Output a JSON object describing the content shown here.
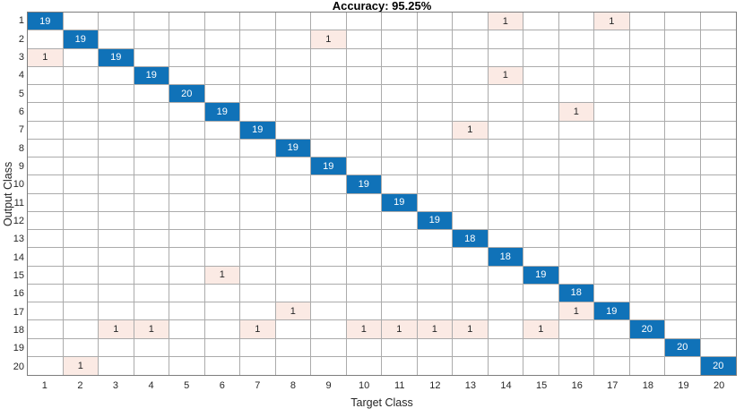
{
  "figure": {
    "title": "Accuracy: 95.25%",
    "x_axis_label": "Target Class",
    "y_axis_label": "Output Class"
  },
  "colors": {
    "diagonal_cell": "#1072B8",
    "off_diagonal_cell": "#FBEAE4",
    "diagonal_text": "#FFFFFF",
    "off_diagonal_text": "#262626",
    "grid_line": "#ABABAB",
    "outer_border": "#7D7D7D",
    "tick_text": "#262626"
  },
  "chart_data": {
    "type": "heatmap",
    "title": "Accuracy: 95.25%",
    "xlabel": "Target Class",
    "ylabel": "Output Class",
    "accuracy_percent": 95.25,
    "x_tick_labels": [
      "1",
      "2",
      "3",
      "4",
      "5",
      "6",
      "7",
      "8",
      "9",
      "10",
      "11",
      "12",
      "13",
      "14",
      "15",
      "16",
      "17",
      "18",
      "19",
      "20"
    ],
    "y_tick_labels": [
      "1",
      "2",
      "3",
      "4",
      "5",
      "6",
      "7",
      "8",
      "9",
      "10",
      "11",
      "12",
      "13",
      "14",
      "15",
      "16",
      "17",
      "18",
      "19",
      "20"
    ],
    "rows_are": "output_class",
    "cols_are": "target_class",
    "zero_cells_blank": true,
    "matrix": [
      [
        19,
        0,
        0,
        0,
        0,
        0,
        0,
        0,
        0,
        0,
        0,
        0,
        0,
        1,
        0,
        0,
        1,
        0,
        0,
        0
      ],
      [
        0,
        19,
        0,
        0,
        0,
        0,
        0,
        0,
        1,
        0,
        0,
        0,
        0,
        0,
        0,
        0,
        0,
        0,
        0,
        0
      ],
      [
        1,
        0,
        19,
        0,
        0,
        0,
        0,
        0,
        0,
        0,
        0,
        0,
        0,
        0,
        0,
        0,
        0,
        0,
        0,
        0
      ],
      [
        0,
        0,
        0,
        19,
        0,
        0,
        0,
        0,
        0,
        0,
        0,
        0,
        0,
        1,
        0,
        0,
        0,
        0,
        0,
        0
      ],
      [
        0,
        0,
        0,
        0,
        20,
        0,
        0,
        0,
        0,
        0,
        0,
        0,
        0,
        0,
        0,
        0,
        0,
        0,
        0,
        0
      ],
      [
        0,
        0,
        0,
        0,
        0,
        19,
        0,
        0,
        0,
        0,
        0,
        0,
        0,
        0,
        0,
        1,
        0,
        0,
        0,
        0
      ],
      [
        0,
        0,
        0,
        0,
        0,
        0,
        19,
        0,
        0,
        0,
        0,
        0,
        1,
        0,
        0,
        0,
        0,
        0,
        0,
        0
      ],
      [
        0,
        0,
        0,
        0,
        0,
        0,
        0,
        19,
        0,
        0,
        0,
        0,
        0,
        0,
        0,
        0,
        0,
        0,
        0,
        0
      ],
      [
        0,
        0,
        0,
        0,
        0,
        0,
        0,
        0,
        19,
        0,
        0,
        0,
        0,
        0,
        0,
        0,
        0,
        0,
        0,
        0
      ],
      [
        0,
        0,
        0,
        0,
        0,
        0,
        0,
        0,
        0,
        19,
        0,
        0,
        0,
        0,
        0,
        0,
        0,
        0,
        0,
        0
      ],
      [
        0,
        0,
        0,
        0,
        0,
        0,
        0,
        0,
        0,
        0,
        19,
        0,
        0,
        0,
        0,
        0,
        0,
        0,
        0,
        0
      ],
      [
        0,
        0,
        0,
        0,
        0,
        0,
        0,
        0,
        0,
        0,
        0,
        19,
        0,
        0,
        0,
        0,
        0,
        0,
        0,
        0
      ],
      [
        0,
        0,
        0,
        0,
        0,
        0,
        0,
        0,
        0,
        0,
        0,
        0,
        18,
        0,
        0,
        0,
        0,
        0,
        0,
        0
      ],
      [
        0,
        0,
        0,
        0,
        0,
        0,
        0,
        0,
        0,
        0,
        0,
        0,
        0,
        18,
        0,
        0,
        0,
        0,
        0,
        0
      ],
      [
        0,
        0,
        0,
        0,
        0,
        1,
        0,
        0,
        0,
        0,
        0,
        0,
        0,
        0,
        19,
        0,
        0,
        0,
        0,
        0
      ],
      [
        0,
        0,
        0,
        0,
        0,
        0,
        0,
        0,
        0,
        0,
        0,
        0,
        0,
        0,
        0,
        18,
        0,
        0,
        0,
        0
      ],
      [
        0,
        0,
        0,
        0,
        0,
        0,
        0,
        1,
        0,
        0,
        0,
        0,
        0,
        0,
        0,
        1,
        19,
        0,
        0,
        0
      ],
      [
        0,
        0,
        1,
        1,
        0,
        0,
        1,
        0,
        0,
        1,
        1,
        1,
        1,
        0,
        1,
        0,
        0,
        20,
        0,
        0
      ],
      [
        0,
        0,
        0,
        0,
        0,
        0,
        0,
        0,
        0,
        0,
        0,
        0,
        0,
        0,
        0,
        0,
        0,
        0,
        20,
        0
      ],
      [
        0,
        1,
        0,
        0,
        0,
        0,
        0,
        0,
        0,
        0,
        0,
        0,
        0,
        0,
        0,
        0,
        0,
        0,
        0,
        20
      ]
    ]
  }
}
